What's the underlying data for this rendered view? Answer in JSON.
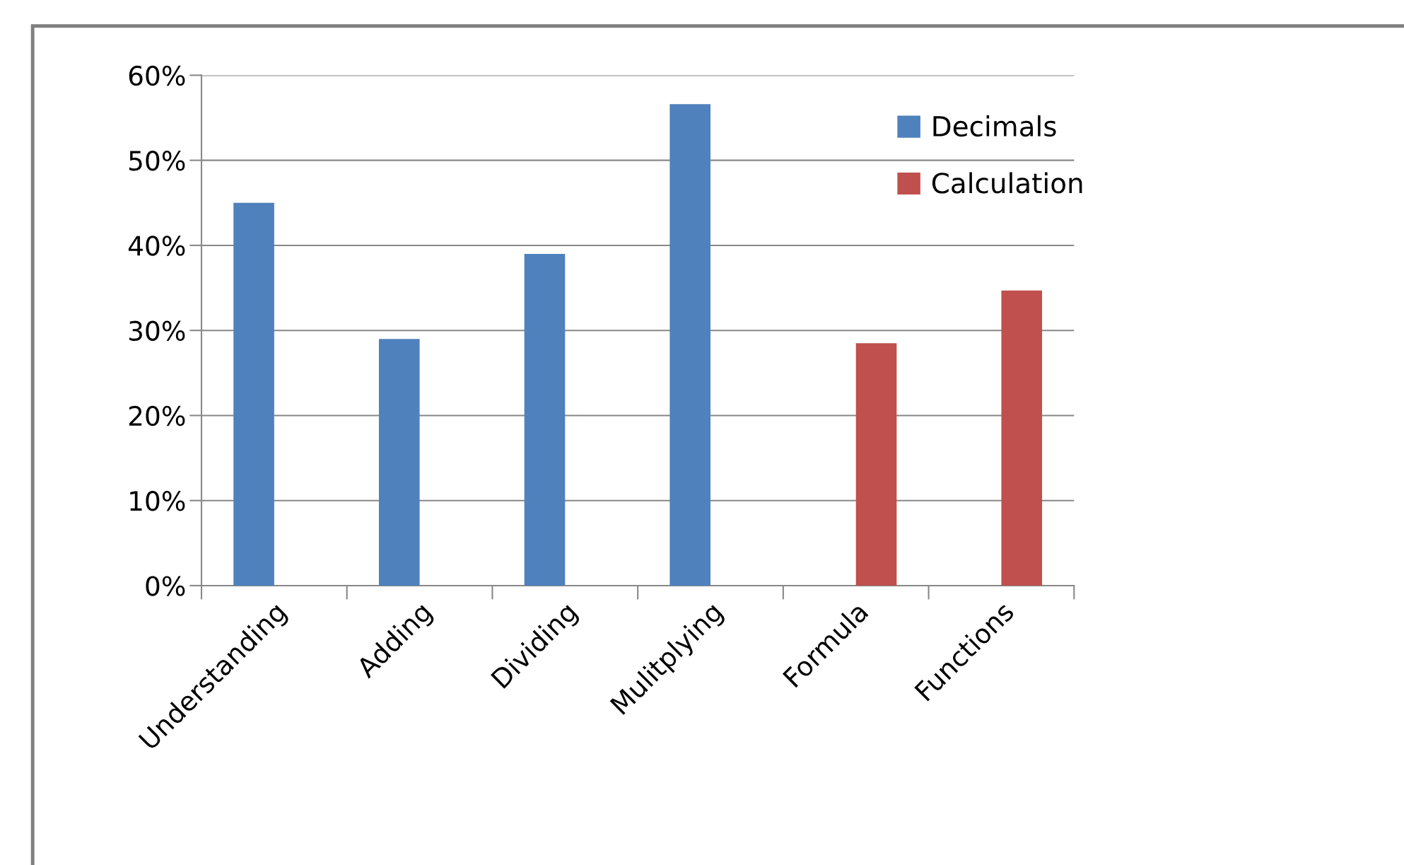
{
  "chart_data": {
    "type": "bar",
    "categories": [
      "Understanding",
      "Adding",
      "Dividing",
      "Mulitplying",
      "Formula",
      "Functions"
    ],
    "series": [
      {
        "name": "Decimals",
        "color": "#4f81bd",
        "values": [
          45,
          29,
          39,
          56.6,
          null,
          null
        ]
      },
      {
        "name": "Calculation",
        "color": "#c0504d",
        "values": [
          null,
          null,
          null,
          null,
          28.5,
          34.7
        ]
      }
    ],
    "ylim": [
      0,
      60
    ],
    "yticks": [
      {
        "value": 0,
        "label": "0%"
      },
      {
        "value": 10,
        "label": "10%"
      },
      {
        "value": 20,
        "label": "20%"
      },
      {
        "value": 30,
        "label": "30%"
      },
      {
        "value": 40,
        "label": "40%"
      },
      {
        "value": 50,
        "label": "50%"
      },
      {
        "value": 60,
        "label": "60%"
      }
    ],
    "grid": "y",
    "legend": "top right"
  }
}
